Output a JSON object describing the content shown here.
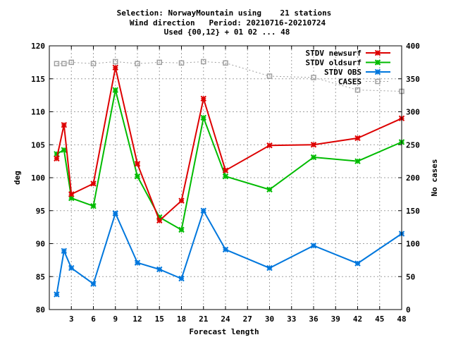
{
  "chart_data": {
    "type": "line",
    "title_lines": [
      "Selection: NorwayMountain using    21 stations",
      "Wind direction   Period: 20210716-20210724",
      "Used {00,12} + 01 02 ... 48"
    ],
    "xlabel": "Forecast length",
    "ylabel": "deg",
    "y2label": "No cases",
    "xlim": [
      0,
      48
    ],
    "ylim": [
      80,
      120
    ],
    "y2lim": [
      0,
      400
    ],
    "xticks": [
      3,
      6,
      9,
      12,
      15,
      18,
      21,
      24,
      27,
      30,
      33,
      36,
      39,
      42,
      45,
      48
    ],
    "yticks": [
      80,
      85,
      90,
      95,
      100,
      105,
      110,
      115,
      120
    ],
    "y2ticks": [
      0,
      50,
      100,
      150,
      200,
      250,
      300,
      350,
      400
    ],
    "grid": true,
    "legend_position": "top-right",
    "series": [
      {
        "name": "STDV newsurf",
        "color": "#dd0000",
        "axis": "y",
        "style": "solid",
        "x": [
          1,
          2,
          3,
          6,
          9,
          12,
          15,
          18,
          21,
          24,
          30,
          36,
          42,
          48
        ],
        "values": [
          102.9,
          108.0,
          97.5,
          99.1,
          116.7,
          102.1,
          93.5,
          96.5,
          112.0,
          101.1,
          104.9,
          105.0,
          106.0,
          109.0
        ]
      },
      {
        "name": "STDV oldsurf",
        "color": "#00bb00",
        "axis": "y",
        "style": "solid",
        "x": [
          1,
          2,
          3,
          6,
          9,
          12,
          15,
          18,
          21,
          24,
          30,
          36,
          42,
          48
        ],
        "values": [
          103.6,
          104.2,
          96.9,
          95.7,
          113.3,
          100.2,
          94.0,
          92.1,
          109.1,
          100.2,
          98.2,
          103.1,
          102.5,
          105.4
        ]
      },
      {
        "name": "STDV OBS",
        "color": "#0077dd",
        "axis": "y",
        "style": "solid",
        "x": [
          1,
          2,
          3,
          6,
          9,
          12,
          15,
          18,
          21,
          24,
          30,
          36,
          42,
          48
        ],
        "values": [
          82.3,
          88.9,
          86.3,
          83.9,
          94.6,
          87.1,
          86.1,
          84.7,
          95.0,
          89.1,
          86.3,
          89.7,
          87.0,
          91.5
        ]
      },
      {
        "name": "CASES",
        "color": "#a0a0a0",
        "axis": "y2",
        "style": "dotted",
        "x": [
          1,
          2,
          3,
          6,
          9,
          12,
          15,
          18,
          21,
          24,
          30,
          36,
          42,
          48
        ],
        "values": [
          373,
          373,
          375,
          373,
          376,
          373,
          375,
          374,
          376,
          374,
          354,
          352,
          333,
          331
        ]
      }
    ]
  }
}
